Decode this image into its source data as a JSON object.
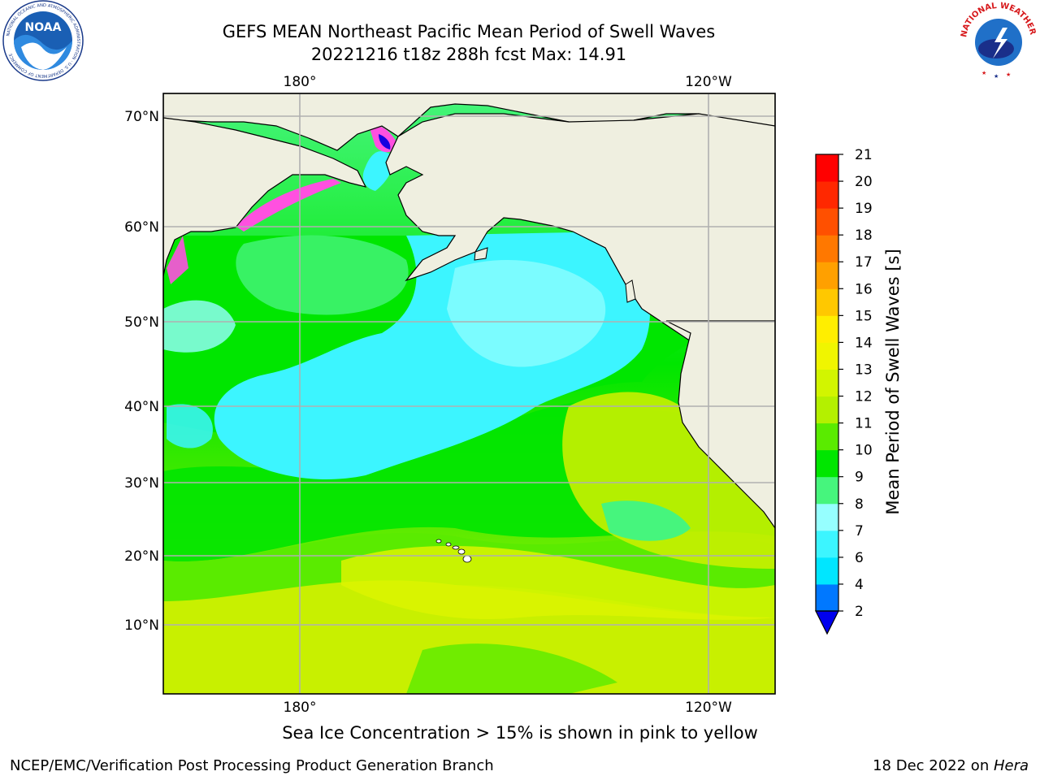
{
  "title_line1": "GEFS MEAN Northeast Pacific Mean Period of Swell Waves",
  "title_line2": "20221216 t18z 288h fcst   Max: 14.91",
  "note": "Sea Ice Concentration > 15% is shown in pink to yellow",
  "footer_left": "NCEP/EMC/Verification Post Processing Product Generation Branch",
  "footer_date": "18 Dec 2022 on ",
  "footer_machine": "Hera",
  "logos": {
    "noaa_text": "NOAA",
    "noaa_ring": "NATIONAL OCEANIC AND ATMOSPHERIC ADMINISTRATION · U.S. DEPARTMENT OF COMMERCE",
    "nws_ring": "NATIONAL WEATHER SERVICE"
  },
  "map": {
    "lat_labels": [
      "70°N",
      "60°N",
      "50°N",
      "40°N",
      "30°N",
      "20°N",
      "10°N"
    ],
    "lon_labels_top": [
      "180°",
      "120°W"
    ],
    "lon_labels_bottom": [
      "180°",
      "120°W"
    ],
    "colors": {
      "land": "#efefe0",
      "coast": "#000000",
      "grid": "#b0b0b0"
    }
  },
  "colorbar": {
    "label": "Mean Period of Swell Waves [s]",
    "ticks": [
      "2",
      "4",
      "6",
      "7",
      "8",
      "9",
      "10",
      "11",
      "12",
      "13",
      "14",
      "15",
      "16",
      "17",
      "18",
      "19",
      "20",
      "21"
    ],
    "colors": [
      "#0000ee",
      "#0078ff",
      "#00e6ff",
      "#3cf5ff",
      "#96ffff",
      "#46f57d",
      "#00e600",
      "#5aeb00",
      "#b4f000",
      "#d2f500",
      "#f0f500",
      "#ffee00",
      "#ffc800",
      "#ffa000",
      "#ff7800",
      "#ff5000",
      "#ff2800",
      "#ff0000"
    ]
  }
}
